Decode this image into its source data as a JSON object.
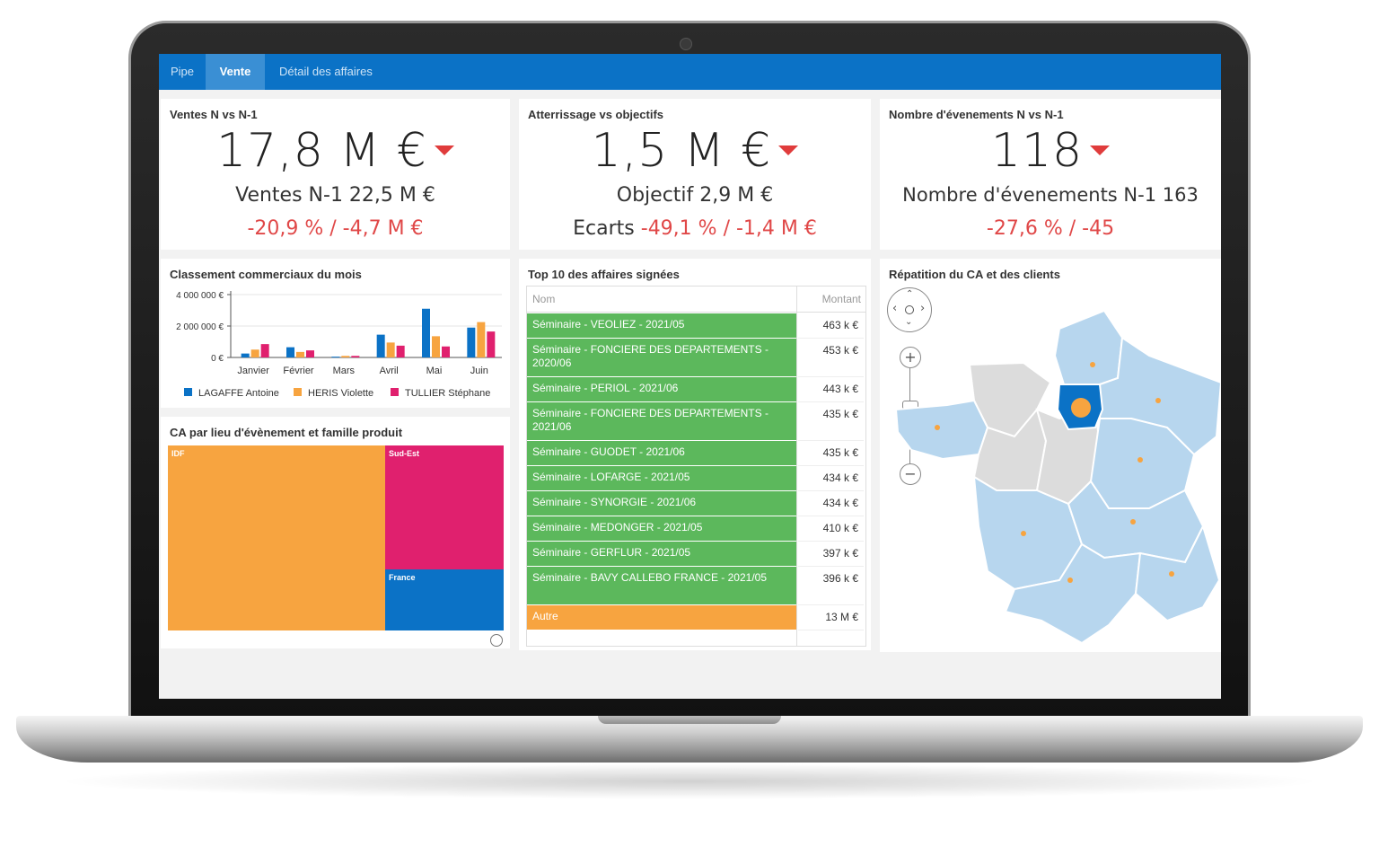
{
  "tabs": [
    {
      "label": "Pipe"
    },
    {
      "label": "Vente"
    },
    {
      "label": "Détail des affaires"
    }
  ],
  "kpi1": {
    "title": "Ventes N vs N-1",
    "value": "17,8 M €",
    "sub": "Ventes N-1 22,5 M €",
    "delta": "-20,9 % / -4,7 M €"
  },
  "kpi2": {
    "title": "Atterrissage vs objectifs",
    "value": "1,5 M €",
    "sub": "Objectif 2,9 M €",
    "delta_label": "Ecarts",
    "delta": "-49,1 % / -1,4 M €"
  },
  "kpi3": {
    "title": "Nombre d'évenements N vs N-1",
    "value": "118",
    "sub": "Nombre d'évenements N-1 163",
    "delta": "-27,6 % / -45"
  },
  "ranking": {
    "title": "Classement commerciaux du mois"
  },
  "treemap": {
    "title": "CA par lieu d'évènement et famille produit",
    "cells": [
      {
        "label": "IDF",
        "color": "#f7a440"
      },
      {
        "label": "Sud-Est",
        "color": "#e0206e"
      },
      {
        "label": "France",
        "color": "#0b72c6"
      }
    ]
  },
  "top10": {
    "title": "Top 10 des affaires signées",
    "col_name": "Nom",
    "col_amount": "Montant",
    "rows": [
      {
        "name": "Séminaire - VEOLIEZ - 2021/05",
        "amount": "463 k €"
      },
      {
        "name": "Séminaire - FONCIERE DES DEPARTEMENTS - 2020/06",
        "amount": "453 k €"
      },
      {
        "name": "Séminaire - PERIOL - 2021/06",
        "amount": "443 k €"
      },
      {
        "name": "Séminaire - FONCIERE DES DEPARTEMENTS - 2021/06",
        "amount": "435 k €"
      },
      {
        "name": "Séminaire - GUODET - 2021/06",
        "amount": "435 k €"
      },
      {
        "name": "Séminaire - LOFARGE - 2021/05",
        "amount": "434 k €"
      },
      {
        "name": "Séminaire - SYNORGIE - 2021/06",
        "amount": "434 k €"
      },
      {
        "name": "Séminaire - MEDONGER - 2021/05",
        "amount": "410 k €"
      },
      {
        "name": "Séminaire - GERFLUR - 2021/05",
        "amount": "397 k €"
      },
      {
        "name": "Séminaire - BAVY CALLEBO FRANCE - 2021/05",
        "amount": "396 k €"
      },
      {
        "name": "Autre",
        "amount": "13 M €"
      }
    ],
    "row_color": "#5cb85c",
    "other_color": "#f7a440"
  },
  "map": {
    "title": "Répatition du CA et des clients",
    "zoom_in": "+",
    "zoom_out": "−"
  },
  "chart_data": {
    "type": "bar",
    "categories": [
      "Janvier",
      "Février",
      "Mars",
      "Avril",
      "Mai",
      "Juin"
    ],
    "series": [
      {
        "name": "LAGAFFE Antoine",
        "color": "#0b72c6",
        "values": [
          250000,
          650000,
          50000,
          1450000,
          3100000,
          1900000
        ]
      },
      {
        "name": "HERIS Violette",
        "color": "#f7a440",
        "values": [
          500000,
          350000,
          100000,
          950000,
          1350000,
          2250000
        ]
      },
      {
        "name": "TULLIER Stéphane",
        "color": "#e0206e",
        "values": [
          850000,
          450000,
          100000,
          750000,
          700000,
          1650000
        ]
      }
    ],
    "yticks": [
      "4 000 000 €",
      "2 000 000 €",
      "0 €"
    ],
    "ylim": [
      0,
      4000000
    ],
    "legend": "bottom"
  }
}
